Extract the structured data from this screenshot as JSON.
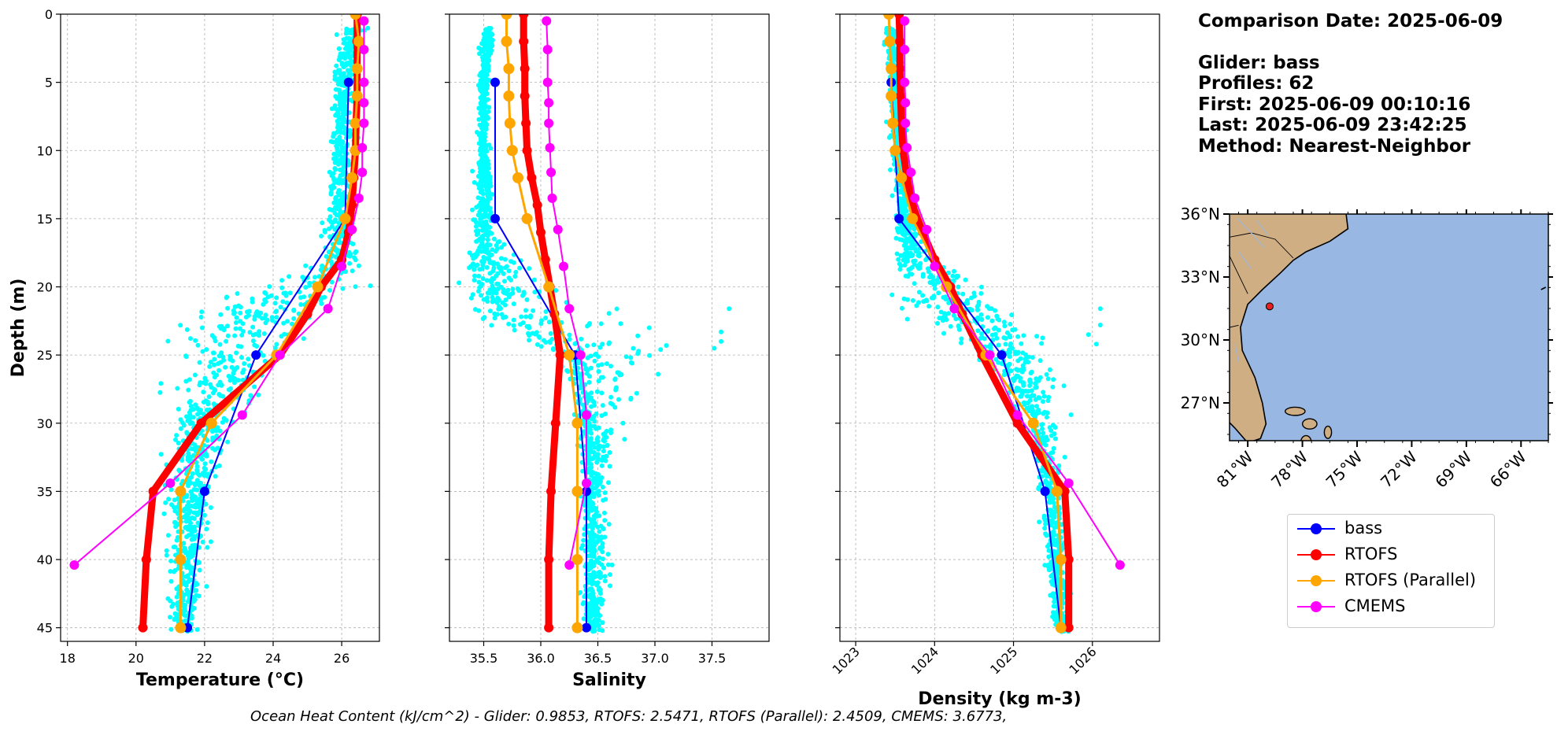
{
  "info": {
    "comparison": "Comparison Date: 2025-06-09",
    "glider": "Glider: bass",
    "profiles": "Profiles: 62",
    "first": "First: 2025-06-09 00:10:16",
    "last": "Last: 2025-06-09 23:42:25",
    "method": "Method: Nearest-Neighbor"
  },
  "footer": "Ocean Heat Content (kJ/cm^2) - Glider: 0.9853,  RTOFS: 2.5471,  RTOFS (Parallel): 2.4509,  CMEMS: 3.6773,",
  "legend": [
    {
      "label": "bass",
      "color": "#0000ff"
    },
    {
      "label": "RTOFS",
      "color": "#ff0000"
    },
    {
      "label": "RTOFS (Parallel)",
      "color": "#ffa500"
    },
    {
      "label": "CMEMS",
      "color": "#ff00ff"
    }
  ],
  "colors": {
    "obs": "#00ffff",
    "ocean": "#98b7e2",
    "land": "#cfae84",
    "grid": "#b0b0b0"
  },
  "chart_data": [
    {
      "type": "line",
      "xlabel": "Temperature (°C)",
      "ylabel": "Depth (m)",
      "xlim": [
        17.8,
        27.1
      ],
      "ylim": [
        46,
        0
      ],
      "xticks": [
        18,
        20,
        22,
        24,
        26
      ],
      "yticks": [
        0,
        5,
        10,
        15,
        20,
        25,
        30,
        35,
        40,
        45
      ],
      "scatter_profile": [
        [
          26.4,
          1
        ],
        [
          26.1,
          3
        ],
        [
          26.0,
          6
        ],
        [
          26.0,
          10
        ],
        [
          25.9,
          14
        ],
        [
          25.9,
          18
        ],
        [
          24.9,
          20
        ],
        [
          24.0,
          21
        ],
        [
          23.0,
          24
        ],
        [
          22.4,
          28
        ],
        [
          21.9,
          31
        ],
        [
          21.6,
          35
        ],
        [
          21.5,
          40
        ],
        [
          21.4,
          45
        ]
      ],
      "scatter_spread": [
        [
          0.3,
          0.3
        ],
        [
          0.3,
          0.3
        ],
        [
          0.3,
          0.3
        ],
        [
          0.35,
          0.35
        ],
        [
          0.4,
          0.4
        ],
        [
          0.5,
          0.5
        ],
        [
          2.2,
          2.0
        ],
        [
          2.1,
          1.9
        ],
        [
          1.8,
          1.6
        ],
        [
          1.3,
          1.0
        ],
        [
          0.9,
          0.8
        ],
        [
          0.7,
          0.6
        ],
        [
          0.5,
          0.5
        ],
        [
          0.4,
          0.4
        ]
      ],
      "series": [
        {
          "name": "bass",
          "color": "#0000ff",
          "width": 2,
          "marker": 6,
          "depth": [
            5,
            15,
            25,
            35,
            45
          ],
          "values": [
            26.2,
            26.1,
            23.5,
            22.0,
            21.5
          ]
        },
        {
          "name": "RTOFS",
          "color": "#ff0000",
          "width": 9,
          "marker": 6,
          "depth": [
            0,
            2,
            4,
            6,
            8,
            10,
            12,
            14,
            16,
            18,
            20,
            22,
            25,
            30,
            35,
            40,
            45
          ],
          "values": [
            26.45,
            26.45,
            26.45,
            26.45,
            26.42,
            26.4,
            26.35,
            26.3,
            26.2,
            26.0,
            25.4,
            25.0,
            24.2,
            21.9,
            20.5,
            20.3,
            20.2
          ]
        },
        {
          "name": "RTOFS (Parallel)",
          "color": "#ffa500",
          "width": 3,
          "marker": 7,
          "depth": [
            0,
            2,
            4,
            6,
            8,
            10,
            12,
            15,
            20,
            25,
            30,
            35,
            40,
            45
          ],
          "values": [
            26.4,
            26.5,
            26.45,
            26.45,
            26.4,
            26.4,
            26.3,
            26.1,
            25.3,
            24.1,
            22.2,
            21.3,
            21.3,
            21.3
          ]
        },
        {
          "name": "CMEMS",
          "color": "#ff00ff",
          "width": 2,
          "marker": 6,
          "depth": [
            0.5,
            2.6,
            5,
            6.5,
            8,
            9.8,
            11.6,
            13.5,
            15.8,
            18.5,
            21.6,
            25,
            29.4,
            34.4,
            40.4
          ],
          "values": [
            26.65,
            26.65,
            26.65,
            26.65,
            26.65,
            26.6,
            26.6,
            26.5,
            26.3,
            26.0,
            25.6,
            24.2,
            23.1,
            21.0,
            18.2
          ]
        }
      ]
    },
    {
      "type": "line",
      "xlabel": "Salinity",
      "xlim": [
        35.2,
        38.0
      ],
      "ylim": [
        46,
        0
      ],
      "xticks": [
        35.5,
        36.0,
        36.5,
        37.0,
        37.5
      ],
      "yticks": [
        0,
        5,
        10,
        15,
        20,
        25,
        30,
        35,
        40,
        45
      ],
      "scatter_profile": [
        [
          35.55,
          1
        ],
        [
          35.5,
          5
        ],
        [
          35.5,
          10
        ],
        [
          35.5,
          15
        ],
        [
          35.55,
          19
        ],
        [
          35.7,
          22
        ],
        [
          36.3,
          25
        ],
        [
          36.4,
          28
        ],
        [
          36.45,
          32
        ],
        [
          36.45,
          36
        ],
        [
          36.45,
          41
        ],
        [
          36.45,
          45
        ]
      ],
      "scatter_spread": [
        [
          0.05,
          0.05
        ],
        [
          0.05,
          0.05
        ],
        [
          0.05,
          0.05
        ],
        [
          0.1,
          0.08
        ],
        [
          0.2,
          0.4
        ],
        [
          0.3,
          0.9
        ],
        [
          0.15,
          0.6
        ],
        [
          0.1,
          0.35
        ],
        [
          0.08,
          0.2
        ],
        [
          0.1,
          0.15
        ],
        [
          0.1,
          0.15
        ],
        [
          0.1,
          0.1
        ]
      ],
      "scatter_extra": [
        [
          37.65,
          21.6
        ],
        [
          37.58,
          23.3
        ],
        [
          37.58,
          24.0
        ],
        [
          37.52,
          24.5
        ],
        [
          36.95,
          23.0
        ],
        [
          37.05,
          24.6
        ],
        [
          36.7,
          22.7
        ],
        [
          36.8,
          25.6
        ],
        [
          36.6,
          24.1
        ],
        [
          36.85,
          24.9
        ],
        [
          37.1,
          24.3
        ],
        [
          36.65,
          26.8
        ]
      ],
      "series": [
        {
          "name": "bass",
          "color": "#0000ff",
          "width": 2,
          "marker": 6,
          "depth": [
            5,
            15,
            25,
            35,
            45
          ],
          "values": [
            35.6,
            35.6,
            36.3,
            36.4,
            36.4
          ]
        },
        {
          "name": "RTOFS",
          "color": "#ff0000",
          "width": 9,
          "marker": 6,
          "depth": [
            0,
            2,
            4,
            6,
            8,
            10,
            12,
            14,
            16,
            18,
            20,
            22,
            25,
            30,
            35,
            40,
            45
          ],
          "values": [
            35.85,
            35.85,
            35.86,
            35.86,
            35.87,
            35.88,
            35.92,
            35.97,
            36.0,
            36.04,
            36.08,
            36.12,
            36.17,
            36.13,
            36.09,
            36.07,
            36.07
          ]
        },
        {
          "name": "RTOFS (Parallel)",
          "color": "#ffa500",
          "width": 3,
          "marker": 7,
          "depth": [
            0,
            2,
            4,
            6,
            8,
            10,
            12,
            15,
            20,
            25,
            30,
            35,
            40,
            45
          ],
          "values": [
            35.7,
            35.7,
            35.72,
            35.72,
            35.73,
            35.75,
            35.8,
            35.88,
            36.07,
            36.25,
            36.32,
            36.32,
            36.32,
            36.32
          ]
        },
        {
          "name": "CMEMS",
          "color": "#ff00ff",
          "width": 2,
          "marker": 6,
          "depth": [
            0.5,
            2.6,
            5,
            6.5,
            8,
            9.8,
            11.6,
            13.5,
            15.8,
            18.5,
            21.6,
            25,
            29.4,
            34.4,
            40.4
          ],
          "values": [
            36.05,
            36.06,
            36.06,
            36.07,
            36.07,
            36.08,
            36.09,
            36.1,
            36.15,
            36.2,
            36.25,
            36.35,
            36.4,
            36.4,
            36.25
          ]
        }
      ]
    },
    {
      "type": "line",
      "xlabel": "Density (kg m-3)",
      "xlim": [
        1022.8,
        1026.85
      ],
      "ylim": [
        46,
        0
      ],
      "xticks": [
        1023,
        1024,
        1025,
        1026
      ],
      "yticks": [
        0,
        5,
        10,
        15,
        20,
        25,
        30,
        35,
        40,
        45
      ],
      "scatter_profile": [
        [
          1023.45,
          1
        ],
        [
          1023.5,
          5
        ],
        [
          1023.55,
          10
        ],
        [
          1023.6,
          15
        ],
        [
          1023.7,
          18
        ],
        [
          1024.2,
          21
        ],
        [
          1024.8,
          24
        ],
        [
          1025.15,
          27
        ],
        [
          1025.35,
          31
        ],
        [
          1025.5,
          36
        ],
        [
          1025.55,
          41
        ],
        [
          1025.6,
          45
        ]
      ],
      "scatter_spread": [
        [
          0.1,
          0.1
        ],
        [
          0.1,
          0.1
        ],
        [
          0.1,
          0.1
        ],
        [
          0.1,
          0.1
        ],
        [
          0.2,
          0.3
        ],
        [
          0.7,
          0.6
        ],
        [
          0.6,
          0.6
        ],
        [
          0.25,
          0.3
        ],
        [
          0.15,
          0.25
        ],
        [
          0.15,
          0.15
        ],
        [
          0.1,
          0.15
        ],
        [
          0.1,
          0.1
        ]
      ],
      "scatter_extra": [
        [
          1026.1,
          21.6
        ],
        [
          1026.1,
          22.8
        ],
        [
          1026.05,
          24.2
        ],
        [
          1025.95,
          23.5
        ]
      ],
      "series": [
        {
          "name": "bass",
          "color": "#0000ff",
          "width": 2,
          "marker": 6,
          "depth": [
            5,
            15,
            25,
            35,
            45
          ],
          "values": [
            1023.45,
            1023.55,
            1024.85,
            1025.4,
            1025.6
          ]
        },
        {
          "name": "RTOFS",
          "color": "#ff0000",
          "width": 9,
          "marker": 6,
          "depth": [
            0,
            2,
            4,
            6,
            8,
            10,
            12,
            14,
            16,
            18,
            20,
            22,
            25,
            30,
            35,
            40,
            45
          ],
          "values": [
            1023.55,
            1023.56,
            1023.56,
            1023.57,
            1023.58,
            1023.6,
            1023.65,
            1023.72,
            1023.85,
            1024.0,
            1024.2,
            1024.35,
            1024.6,
            1025.05,
            1025.65,
            1025.7,
            1025.7
          ]
        },
        {
          "name": "RTOFS (Parallel)",
          "color": "#ffa500",
          "width": 3,
          "marker": 7,
          "depth": [
            0,
            2,
            4,
            6,
            8,
            10,
            12,
            15,
            20,
            25,
            30,
            35,
            40,
            45
          ],
          "values": [
            1023.42,
            1023.43,
            1023.45,
            1023.45,
            1023.47,
            1023.5,
            1023.58,
            1023.72,
            1024.15,
            1024.65,
            1025.25,
            1025.55,
            1025.6,
            1025.6
          ]
        },
        {
          "name": "CMEMS",
          "color": "#ff00ff",
          "width": 2,
          "marker": 6,
          "depth": [
            0.5,
            2.6,
            5,
            6.5,
            8,
            9.8,
            11.6,
            13.5,
            15.8,
            18.5,
            21.6,
            25,
            29.4,
            34.4,
            40.4
          ],
          "values": [
            1023.62,
            1023.62,
            1023.62,
            1023.63,
            1023.63,
            1023.65,
            1023.7,
            1023.75,
            1023.9,
            1024.0,
            1024.25,
            1024.7,
            1025.05,
            1025.7,
            1026.35
          ]
        }
      ]
    },
    {
      "type": "map",
      "xticks": [
        "81°W",
        "78°W",
        "75°W",
        "72°W",
        "69°W",
        "66°W"
      ],
      "xtick_values": [
        -81,
        -78,
        -75,
        -72,
        -69,
        -66
      ],
      "yticks": [
        "36°N",
        "33°N",
        "30°N",
        "27°N"
      ],
      "ytick_values": [
        36,
        33,
        30,
        27
      ],
      "lon_range": [
        -82.0,
        -64.5
      ],
      "lat_range": [
        25.2,
        36.0
      ],
      "glider_position": [
        -79.8,
        31.6
      ]
    }
  ]
}
